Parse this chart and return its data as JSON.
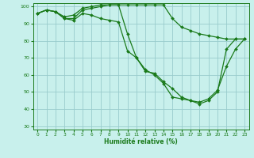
{
  "xlabel": "Humidité relative (%)",
  "background_color": "#c8f0ec",
  "grid_color": "#99cccc",
  "line_color": "#1a7a1a",
  "ylim": [
    28,
    102
  ],
  "xlim": [
    -0.5,
    23.5
  ],
  "yticks": [
    30,
    40,
    50,
    60,
    70,
    80,
    90,
    100
  ],
  "xticks": [
    0,
    1,
    2,
    3,
    4,
    5,
    6,
    7,
    8,
    9,
    10,
    11,
    12,
    13,
    14,
    15,
    16,
    17,
    18,
    19,
    20,
    21,
    22,
    23
  ],
  "series": [
    [
      96,
      98,
      97,
      94,
      95,
      99,
      100,
      101,
      101,
      101,
      101,
      101,
      101,
      101,
      101,
      93,
      88,
      86,
      84,
      83,
      82,
      81,
      81,
      81
    ],
    [
      96,
      98,
      97,
      93,
      93,
      98,
      99,
      100,
      101,
      101,
      84,
      70,
      62,
      61,
      56,
      52,
      47,
      45,
      44,
      46,
      51,
      65,
      75,
      81
    ],
    [
      96,
      98,
      97,
      93,
      92,
      96,
      95,
      93,
      92,
      91,
      74,
      70,
      63,
      60,
      55,
      47,
      46,
      45,
      43,
      45,
      50,
      75,
      81,
      81
    ]
  ]
}
